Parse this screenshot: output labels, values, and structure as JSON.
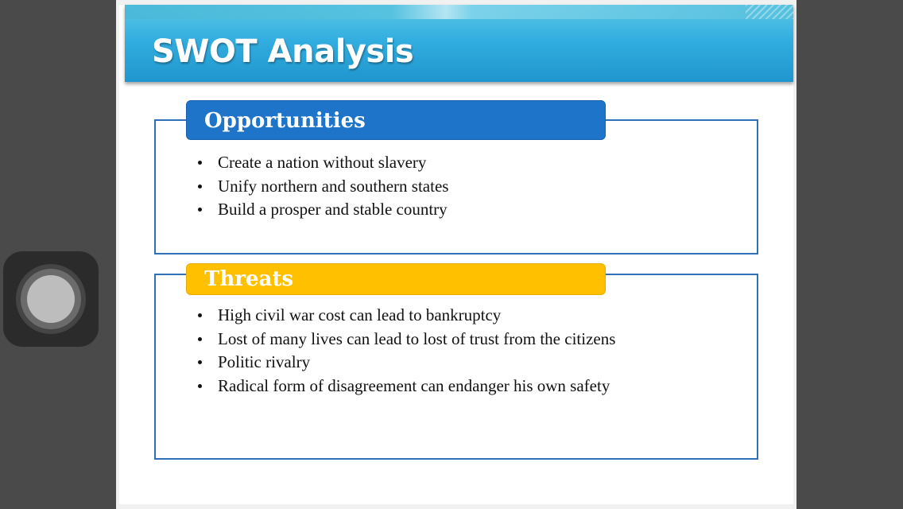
{
  "slide": {
    "title": "SWOT Analysis"
  },
  "opportunities": {
    "heading": "Opportunities",
    "items": [
      "Create a nation without slavery",
      "Unify northern and southern states",
      "Build a prosper and stable country"
    ]
  },
  "threats": {
    "heading": "Threats",
    "items": [
      "High civil war cost can lead to bankruptcy",
      "Lost of many lives can lead to lost of trust from the citizens",
      "Politic rivalry",
      "Radical form of disagreement can endanger his own safety"
    ]
  },
  "colors": {
    "header_band": "#33aee0",
    "opportunities_tab": "#1e74c9",
    "threats_tab": "#ffc000",
    "panel_border": "#2f6fb5"
  },
  "icons": {
    "assistive_touch": "assistive-touch-icon"
  }
}
